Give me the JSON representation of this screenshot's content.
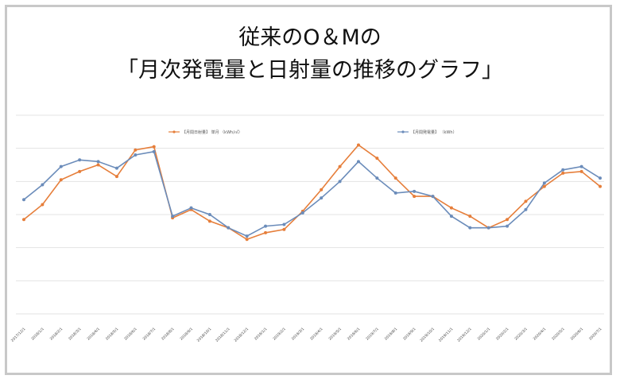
{
  "title_line1": "従来のO＆Mの",
  "title_line2": "「月次発電量と日射量の推移のグラフ」",
  "colors": {
    "series_orange": "#e67e3a",
    "series_blue": "#6b8cba",
    "grid": "#e3e3e3",
    "frame": "#c8c8c8"
  },
  "chart_data": {
    "type": "line",
    "title": "",
    "xlabel": "",
    "ylabel": "",
    "grid": true,
    "legend_position": "top",
    "categories": [
      "2017/12/1",
      "2018/1/1",
      "2018/2/1",
      "2018/3/1",
      "2018/4/1",
      "2018/5/1",
      "2018/6/1",
      "2018/7/1",
      "2018/8/1",
      "2018/9/1",
      "2018/10/1",
      "2018/11/1",
      "2018/12/1",
      "2019/1/1",
      "2019/2/1",
      "2019/3/1",
      "2019/4/1",
      "2019/5/1",
      "2019/6/1",
      "2019/7/1",
      "2019/8/1",
      "2019/9/1",
      "2019/10/1",
      "2019/11/1",
      "2019/12/1",
      "2020/1/1",
      "2020/2/1",
      "2020/3/1",
      "2020/4/1",
      "2020/5/1",
      "2020/6/1",
      "2020/7/1"
    ],
    "ylim": [
      0,
      6
    ],
    "series": [
      {
        "name": "【月間日射量】 単月 （kWh/㎡）",
        "color": "#e67e3a",
        "values": [
          2.85,
          3.3,
          4.05,
          4.3,
          4.5,
          4.15,
          4.95,
          5.05,
          2.9,
          3.15,
          2.8,
          2.6,
          2.25,
          2.45,
          2.55,
          3.1,
          3.75,
          4.45,
          5.1,
          4.7,
          4.1,
          3.55,
          3.55,
          3.2,
          2.95,
          2.6,
          2.85,
          3.4,
          3.85,
          4.25,
          4.3,
          3.85
        ],
        "labels": [
          "2017/12/1",
          "2018/1/1",
          "2018/2/1",
          "2018/3/1",
          "2018/4/1",
          "2018/5/1",
          "2018/6/1",
          "2018/7/1",
          "2018/8/1",
          "2018/9/1",
          "2018/10/1",
          "2018/11/1",
          "2018/12/1",
          "2019/1/1",
          "2019/2/1",
          "2019/3/1",
          "2019/4/1",
          "2019/5/1",
          "2019/6/1",
          "2019/7/1",
          "2019/8/1",
          "2019/9/1",
          "2019/10/1",
          "2019/11/1",
          "2019/12/1",
          "2020/1/1",
          "2020/2/1",
          "2020/3/1",
          "2020/4/1",
          "2020/5/1",
          "2020/6/1",
          "2020/7/1"
        ]
      },
      {
        "name": "【月間発電量】 （kWh）",
        "color": "#6b8cba",
        "values": [
          3.45,
          3.9,
          4.45,
          4.65,
          4.6,
          4.4,
          4.8,
          4.9,
          2.95,
          3.2,
          3.0,
          2.6,
          2.35,
          2.65,
          2.7,
          3.05,
          3.5,
          4.0,
          4.6,
          4.1,
          3.65,
          3.7,
          3.55,
          2.95,
          2.6,
          2.6,
          2.65,
          3.15,
          3.95,
          4.35,
          4.45,
          4.1
        ]
      }
    ],
    "legend": [
      "【月間日射量】 単月 （kWh/㎡）",
      "【月間発電量】 （kWh）"
    ]
  }
}
